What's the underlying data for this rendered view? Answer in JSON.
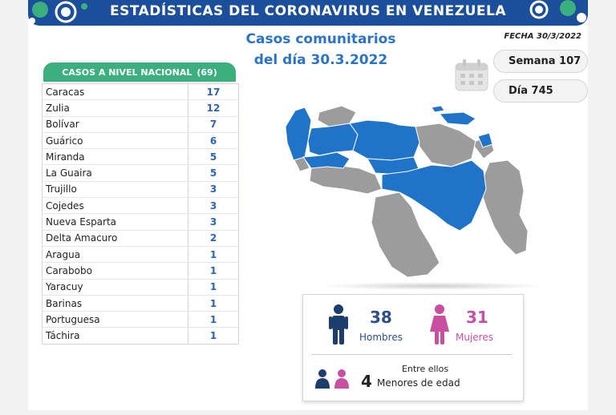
{
  "header": {
    "title": "ESTADÍSTICAS DEL CORONAVIRUS EN VENEZUELA",
    "subtitle_line1": "Casos comunitarios",
    "subtitle_line2": "del día 30.3.2022",
    "fecha": "FECHA 30/3/2022"
  },
  "badges": {
    "semana": "Semana 107",
    "dia": "Día 745"
  },
  "table": {
    "header_label": "CASOS A NIVEL NACIONAL",
    "header_total": "(69)",
    "rows": [
      {
        "state": "Caracas",
        "cases": "17"
      },
      {
        "state": "Zulia",
        "cases": "12"
      },
      {
        "state": "Bolívar",
        "cases": "7"
      },
      {
        "state": "Guárico",
        "cases": "6"
      },
      {
        "state": "Miranda",
        "cases": "5"
      },
      {
        "state": "La Guaira",
        "cases": "5"
      },
      {
        "state": "Trujillo",
        "cases": "3"
      },
      {
        "state": "Cojedes",
        "cases": "3"
      },
      {
        "state": "Nueva Esparta",
        "cases": "3"
      },
      {
        "state": "Delta Amacuro",
        "cases": "2"
      },
      {
        "state": "Aragua",
        "cases": "1"
      },
      {
        "state": "Carabobo",
        "cases": "1"
      },
      {
        "state": "Yaracuy",
        "cases": "1"
      },
      {
        "state": "Barinas",
        "cases": "1"
      },
      {
        "state": "Portuguesa",
        "cases": "1"
      },
      {
        "state": "Táchira",
        "cases": "1"
      }
    ]
  },
  "gender": {
    "men_count": "38",
    "men_label": "Hombres",
    "women_count": "31",
    "women_label": "Mujeres",
    "entre_label": "Entre ellos",
    "minors_count": "4",
    "minors_label": "Menores de edad"
  },
  "icons": {
    "man": "man-icon",
    "woman": "woman-icon",
    "calendar": "calendar-icon",
    "virus": "virus-icon",
    "map": "venezuela-map"
  },
  "colors": {
    "banner": "#1b4f9c",
    "table_header": "#3bb07e",
    "accent_blue": "#2b73c7",
    "map_highlight": "#1f73c8",
    "map_other": "#9c9c9c",
    "men": "#1d3d6e",
    "women": "#c94fa0"
  }
}
